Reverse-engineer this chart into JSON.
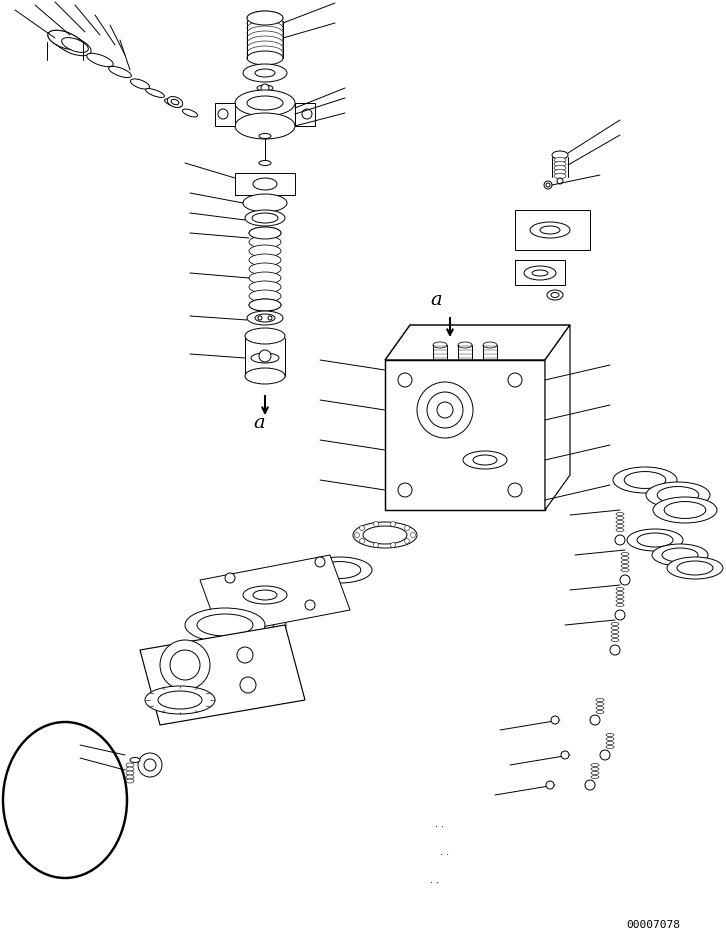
{
  "figure_width": 7.26,
  "figure_height": 9.42,
  "dpi": 100,
  "background_color": "#ffffff",
  "doc_number": "00007078",
  "line_color": "#000000",
  "line_width": 0.7
}
